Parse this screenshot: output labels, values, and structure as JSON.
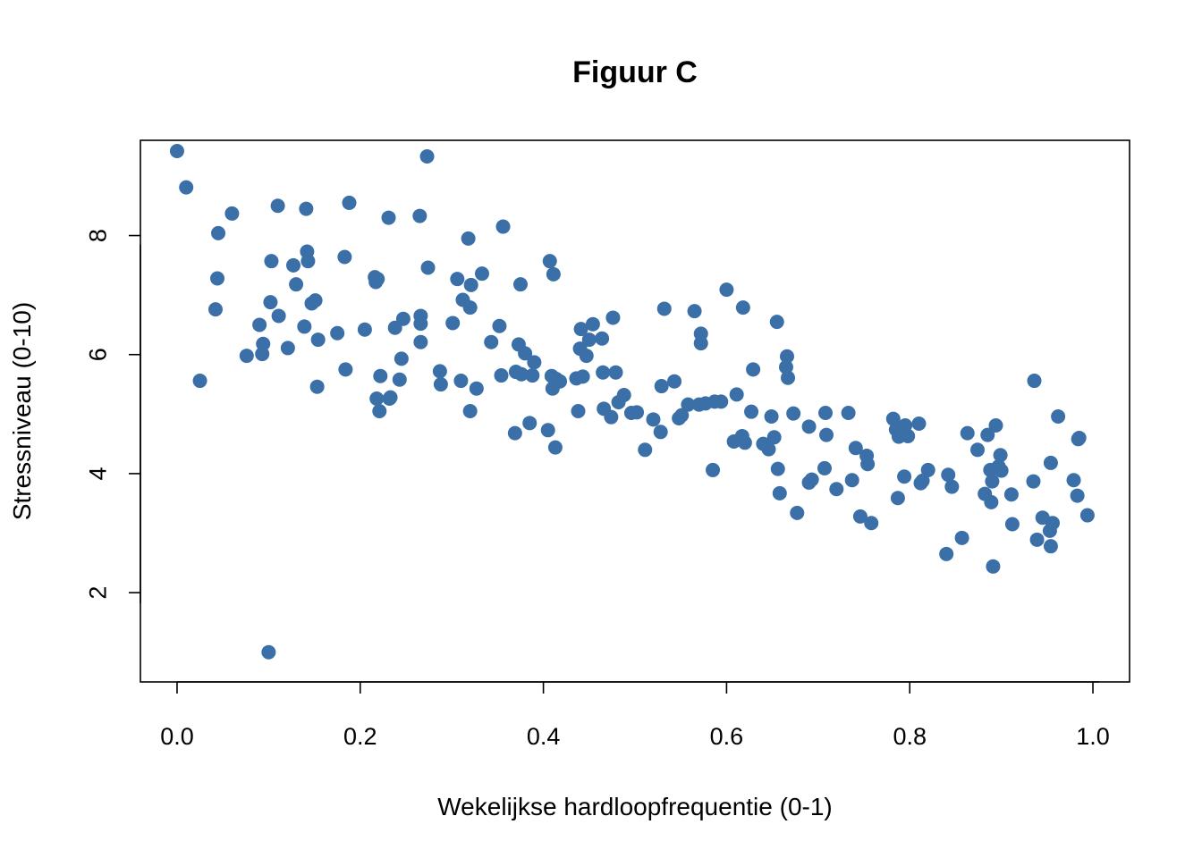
{
  "chart_data": {
    "type": "scatter",
    "title": "Figuur C",
    "xlabel": "Wekelijkse hardloopfrequentie (0-1)",
    "ylabel": "Stressniveau (0-10)",
    "xlim": [
      -0.04,
      1.04
    ],
    "ylim": [
      0.5,
      9.6
    ],
    "xticks": [
      0.0,
      0.2,
      0.4,
      0.6,
      0.8,
      1.0
    ],
    "xtick_labels": [
      "0.0",
      "0.2",
      "0.4",
      "0.6",
      "0.8",
      "1.0"
    ],
    "yticks": [
      2,
      4,
      6,
      8
    ],
    "ytick_labels": [
      "2",
      "4",
      "6",
      "8"
    ],
    "grid": false,
    "marker_color": "#3a6fa8",
    "points": [
      [
        0.0,
        9.42
      ],
      [
        0.01,
        8.81
      ],
      [
        0.025,
        5.56
      ],
      [
        0.042,
        6.76
      ],
      [
        0.044,
        7.28
      ],
      [
        0.045,
        8.04
      ],
      [
        0.06,
        8.37
      ],
      [
        0.076,
        5.98
      ],
      [
        0.09,
        6.5
      ],
      [
        0.093,
        6.01
      ],
      [
        0.094,
        6.18
      ],
      [
        0.1,
        1.0
      ],
      [
        0.102,
        6.88
      ],
      [
        0.103,
        7.57
      ],
      [
        0.11,
        8.5
      ],
      [
        0.111,
        6.65
      ],
      [
        0.121,
        6.11
      ],
      [
        0.127,
        7.5
      ],
      [
        0.13,
        7.18
      ],
      [
        0.139,
        6.47
      ],
      [
        0.141,
        8.45
      ],
      [
        0.142,
        7.73
      ],
      [
        0.143,
        7.57
      ],
      [
        0.147,
        6.86
      ],
      [
        0.151,
        6.91
      ],
      [
        0.153,
        5.46
      ],
      [
        0.154,
        6.25
      ],
      [
        0.175,
        6.36
      ],
      [
        0.183,
        7.64
      ],
      [
        0.184,
        5.75
      ],
      [
        0.188,
        8.55
      ],
      [
        0.205,
        6.42
      ],
      [
        0.216,
        7.3
      ],
      [
        0.217,
        7.22
      ],
      [
        0.218,
        5.26
      ],
      [
        0.219,
        7.27
      ],
      [
        0.221,
        5.05
      ],
      [
        0.222,
        5.64
      ],
      [
        0.231,
        8.3
      ],
      [
        0.232,
        5.26
      ],
      [
        0.233,
        5.28
      ],
      [
        0.238,
        6.45
      ],
      [
        0.243,
        5.58
      ],
      [
        0.245,
        5.93
      ],
      [
        0.247,
        6.6
      ],
      [
        0.265,
        8.33
      ],
      [
        0.266,
        6.65
      ],
      [
        0.266,
        6.52
      ],
      [
        0.266,
        6.21
      ],
      [
        0.273,
        9.33
      ],
      [
        0.274,
        7.46
      ],
      [
        0.287,
        5.72
      ],
      [
        0.288,
        5.5
      ],
      [
        0.301,
        6.53
      ],
      [
        0.306,
        7.27
      ],
      [
        0.31,
        5.56
      ],
      [
        0.312,
        6.92
      ],
      [
        0.318,
        7.95
      ],
      [
        0.32,
        5.05
      ],
      [
        0.32,
        6.79
      ],
      [
        0.321,
        7.17
      ],
      [
        0.327,
        5.43
      ],
      [
        0.333,
        7.36
      ],
      [
        0.343,
        6.21
      ],
      [
        0.352,
        6.48
      ],
      [
        0.354,
        5.65
      ],
      [
        0.356,
        8.15
      ],
      [
        0.369,
        4.68
      ],
      [
        0.37,
        5.71
      ],
      [
        0.373,
        6.17
      ],
      [
        0.375,
        7.18
      ],
      [
        0.376,
        5.67
      ],
      [
        0.38,
        6.02
      ],
      [
        0.385,
        4.85
      ],
      [
        0.388,
        5.65
      ],
      [
        0.39,
        5.87
      ],
      [
        0.405,
        4.73
      ],
      [
        0.407,
        7.57
      ],
      [
        0.409,
        5.64
      ],
      [
        0.41,
        5.43
      ],
      [
        0.411,
        7.35
      ],
      [
        0.413,
        4.44
      ],
      [
        0.414,
        5.59
      ],
      [
        0.418,
        5.55
      ],
      [
        0.436,
        5.6
      ],
      [
        0.438,
        5.05
      ],
      [
        0.44,
        6.1
      ],
      [
        0.441,
        6.43
      ],
      [
        0.443,
        5.63
      ],
      [
        0.447,
        5.98
      ],
      [
        0.45,
        6.25
      ],
      [
        0.454,
        6.51
      ],
      [
        0.464,
        6.27
      ],
      [
        0.465,
        5.7
      ],
      [
        0.466,
        5.09
      ],
      [
        0.474,
        4.95
      ],
      [
        0.476,
        6.62
      ],
      [
        0.479,
        5.7
      ],
      [
        0.482,
        5.2
      ],
      [
        0.488,
        5.32
      ],
      [
        0.496,
        5.02
      ],
      [
        0.502,
        5.03
      ],
      [
        0.511,
        4.4
      ],
      [
        0.52,
        4.91
      ],
      [
        0.528,
        4.7
      ],
      [
        0.529,
        5.47
      ],
      [
        0.532,
        6.77
      ],
      [
        0.543,
        5.55
      ],
      [
        0.548,
        4.93
      ],
      [
        0.551,
        4.98
      ],
      [
        0.558,
        5.16
      ],
      [
        0.565,
        6.73
      ],
      [
        0.57,
        5.16
      ],
      [
        0.572,
        6.19
      ],
      [
        0.572,
        6.35
      ],
      [
        0.577,
        5.18
      ],
      [
        0.585,
        4.06
      ],
      [
        0.587,
        5.21
      ],
      [
        0.594,
        5.21
      ],
      [
        0.6,
        7.09
      ],
      [
        0.608,
        4.54
      ],
      [
        0.611,
        5.33
      ],
      [
        0.617,
        4.63
      ],
      [
        0.618,
        6.79
      ],
      [
        0.62,
        4.52
      ],
      [
        0.627,
        5.04
      ],
      [
        0.629,
        5.75
      ],
      [
        0.64,
        4.5
      ],
      [
        0.646,
        4.41
      ],
      [
        0.649,
        4.96
      ],
      [
        0.652,
        4.61
      ],
      [
        0.655,
        6.55
      ],
      [
        0.656,
        4.08
      ],
      [
        0.658,
        3.67
      ],
      [
        0.665,
        5.79
      ],
      [
        0.666,
        5.97
      ],
      [
        0.667,
        5.61
      ],
      [
        0.673,
        5.01
      ],
      [
        0.677,
        3.34
      ],
      [
        0.69,
        4.79
      ],
      [
        0.69,
        3.85
      ],
      [
        0.693,
        3.9
      ],
      [
        0.707,
        4.09
      ],
      [
        0.708,
        5.02
      ],
      [
        0.709,
        4.65
      ],
      [
        0.72,
        3.74
      ],
      [
        0.733,
        5.02
      ],
      [
        0.737,
        3.89
      ],
      [
        0.741,
        4.43
      ],
      [
        0.746,
        3.28
      ],
      [
        0.753,
        4.3
      ],
      [
        0.754,
        4.16
      ],
      [
        0.758,
        3.17
      ],
      [
        0.782,
        4.92
      ],
      [
        0.785,
        4.74
      ],
      [
        0.787,
        3.59
      ],
      [
        0.788,
        4.62
      ],
      [
        0.794,
        3.95
      ],
      [
        0.795,
        4.81
      ],
      [
        0.798,
        4.63
      ],
      [
        0.81,
        4.84
      ],
      [
        0.812,
        3.84
      ],
      [
        0.814,
        3.88
      ],
      [
        0.82,
        4.06
      ],
      [
        0.84,
        2.65
      ],
      [
        0.842,
        3.98
      ],
      [
        0.846,
        3.78
      ],
      [
        0.857,
        2.92
      ],
      [
        0.863,
        4.68
      ],
      [
        0.874,
        4.4
      ],
      [
        0.882,
        3.66
      ],
      [
        0.885,
        4.65
      ],
      [
        0.888,
        4.06
      ],
      [
        0.889,
        3.52
      ],
      [
        0.89,
        3.87
      ],
      [
        0.891,
        2.44
      ],
      [
        0.894,
        4.81
      ],
      [
        0.897,
        4.12
      ],
      [
        0.899,
        4.31
      ],
      [
        0.9,
        4.05
      ],
      [
        0.911,
        3.65
      ],
      [
        0.912,
        3.15
      ],
      [
        0.935,
        3.87
      ],
      [
        0.936,
        5.56
      ],
      [
        0.939,
        2.89
      ],
      [
        0.945,
        3.26
      ],
      [
        0.953,
        3.04
      ],
      [
        0.954,
        2.78
      ],
      [
        0.954,
        4.18
      ],
      [
        0.956,
        3.17
      ],
      [
        0.962,
        4.96
      ],
      [
        0.979,
        3.89
      ],
      [
        0.983,
        3.63
      ],
      [
        0.984,
        4.58
      ],
      [
        0.985,
        4.6
      ],
      [
        0.994,
        3.3
      ]
    ]
  }
}
